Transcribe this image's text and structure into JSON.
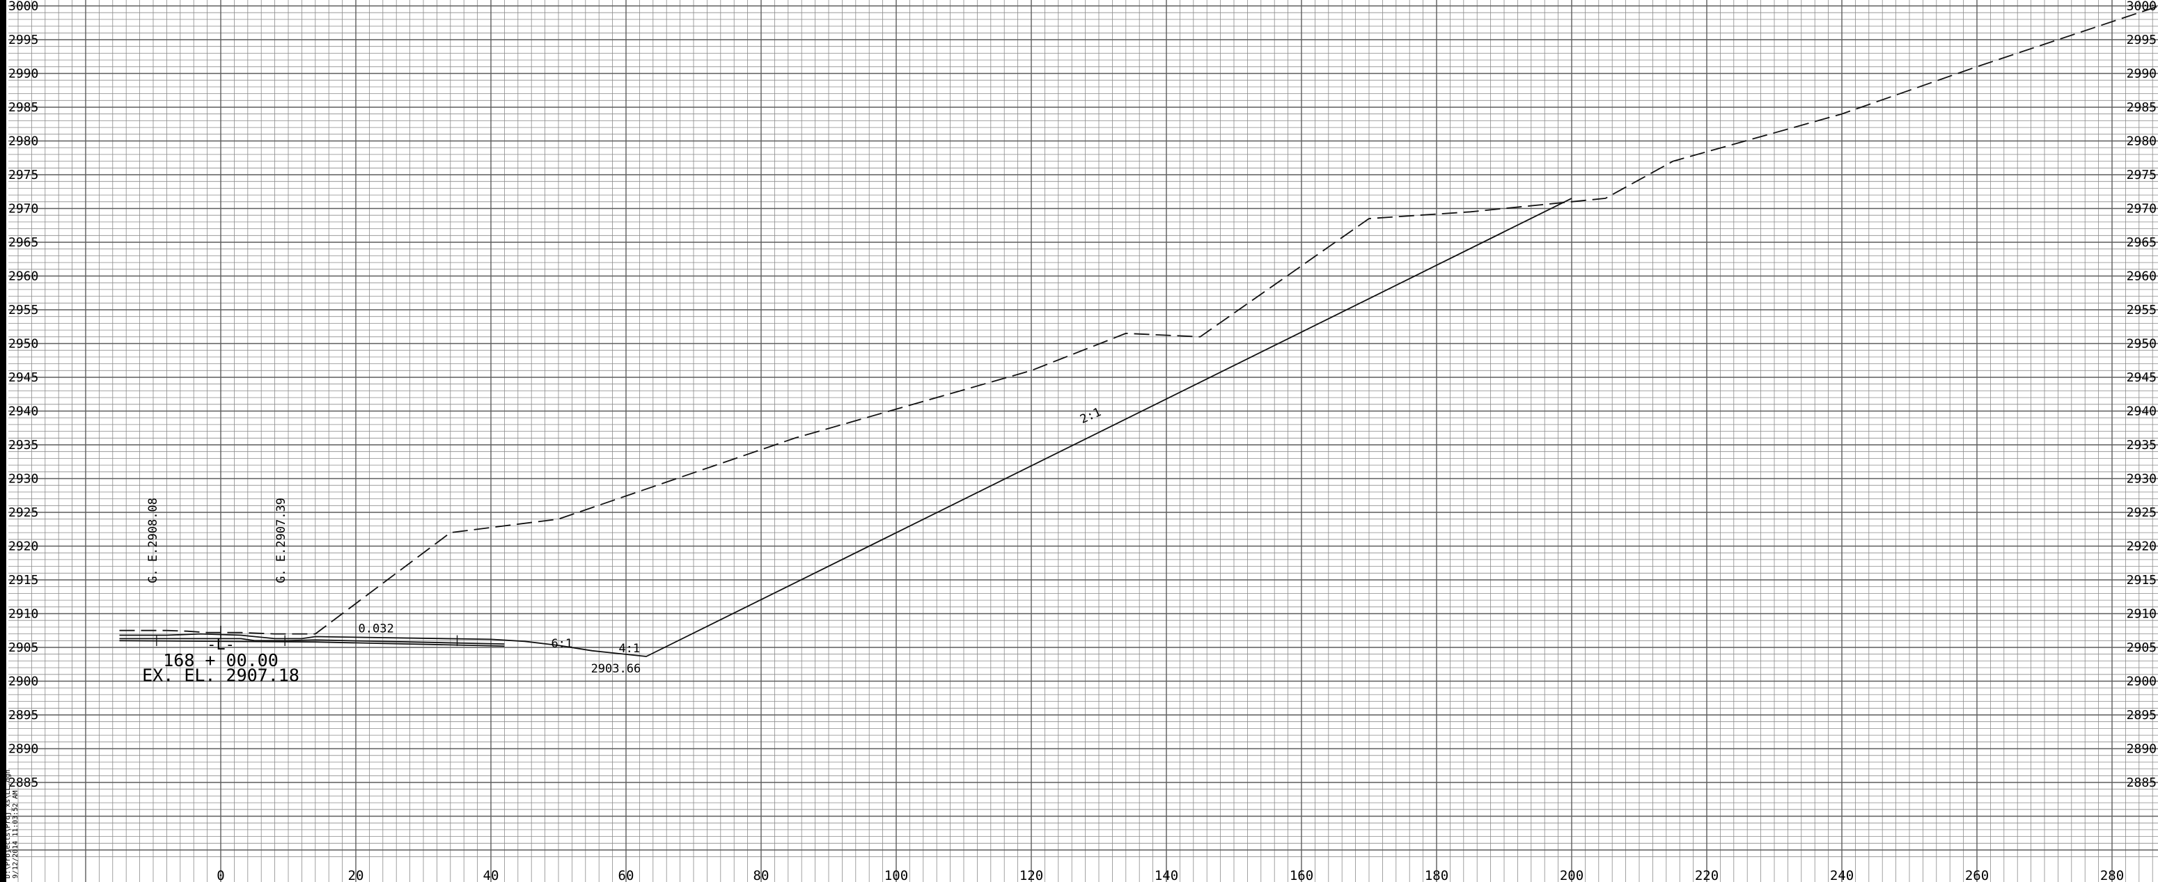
{
  "sheet": {
    "filename_text": "D:\\Projects\\Proj_xs\\LL.dgn",
    "plot_stamp": "9/12/2014 11:03:52 AM"
  },
  "chart_data": {
    "type": "line",
    "title": "",
    "xlabel": "",
    "ylabel": "",
    "xlim": [
      -32,
      288
    ],
    "ylim": [
      2874,
      3001
    ],
    "x_ticks": [
      0,
      20,
      40,
      60,
      80,
      100,
      120,
      140,
      160,
      180,
      200,
      220,
      240,
      260,
      280
    ],
    "x_tick_labels": [
      "0",
      "20",
      "40",
      "60",
      "80",
      "100",
      "120",
      "140",
      "160",
      "180",
      "200",
      "220",
      "240",
      "260",
      "280"
    ],
    "y_ticks": [
      2885,
      2890,
      2895,
      2900,
      2905,
      2910,
      2915,
      2920,
      2925,
      2930,
      2935,
      2940,
      2945,
      2950,
      2955,
      2960,
      2965,
      2970,
      2975,
      2980,
      2985,
      2990,
      2995,
      3000
    ],
    "y_tick_labels_left": [
      "2885",
      "2890",
      "2895",
      "2900",
      "2905",
      "2910",
      "2915",
      "2920",
      "2925",
      "2930",
      "2935",
      "2940",
      "2945",
      "2950",
      "2955",
      "2960",
      "2965",
      "2970",
      "2975",
      "2980",
      "2985",
      "2990",
      "2995",
      "3000"
    ],
    "y_tick_labels_right": [
      "2885",
      "2890",
      "2895",
      "2900",
      "2905",
      "2910",
      "2915",
      "2920",
      "2925",
      "2930",
      "2935",
      "2940",
      "2945",
      "2950",
      "2955",
      "2960",
      "2965",
      "2970",
      "2975",
      "2980",
      "2985",
      "2990",
      "2995",
      "3000"
    ],
    "grid": true,
    "grid_minor_step_x": 2,
    "grid_minor_step_y": 1,
    "grid_color": "#8a8a8a",
    "series": [
      {
        "style": "dashed",
        "color": "#111111",
        "points": [
          [
            -15,
            2907.5
          ],
          [
            -8,
            2907.5
          ],
          [
            -5,
            2907.4
          ],
          [
            -2,
            2907.2
          ],
          [
            3,
            2907.2
          ],
          [
            8,
            2907.0
          ],
          [
            14,
            2907.0
          ],
          [
            34,
            2922.0
          ],
          [
            50,
            2924.0
          ],
          [
            85,
            2936.0
          ],
          [
            120,
            2946.0
          ],
          [
            134,
            2951.5
          ],
          [
            145,
            2951.0
          ],
          [
            170,
            2968.5
          ],
          [
            185,
            2969.5
          ],
          [
            200,
            2971.0
          ],
          [
            205,
            2971.5
          ],
          [
            215,
            2977.0
          ],
          [
            240,
            2984.0
          ],
          [
            260,
            2991.0
          ],
          [
            287,
            3000.0
          ]
        ]
      },
      {
        "style": "solid",
        "color": "#111111",
        "points": [
          [
            -15,
            2906.8
          ],
          [
            -8,
            2906.8
          ],
          [
            -3,
            2907.0
          ],
          [
            3,
            2906.8
          ],
          [
            8,
            2906.3
          ],
          [
            12,
            2906.3
          ],
          [
            14,
            2906.6
          ],
          [
            40,
            2906.2
          ],
          [
            45,
            2905.9
          ],
          [
            50,
            2905.3
          ],
          [
            55,
            2904.5
          ],
          [
            63,
            2903.66
          ],
          [
            200,
            2971.5
          ]
        ]
      },
      {
        "style": "solid",
        "color": "#111111",
        "points": [
          [
            -15,
            2906.3
          ],
          [
            3,
            2906.3
          ],
          [
            5,
            2906.0
          ],
          [
            10,
            2906.0
          ],
          [
            14,
            2906.1
          ],
          [
            42,
            2905.5
          ]
        ]
      },
      {
        "style": "solid",
        "color": "#111111",
        "points": [
          [
            -15,
            2906.0
          ],
          [
            14,
            2905.8
          ],
          [
            42,
            2905.2
          ]
        ]
      }
    ],
    "annotations": [
      {
        "text": "0.032",
        "x": 23,
        "y": 2907.2,
        "rotate": 0,
        "size": "small"
      },
      {
        "text": "6:1",
        "x": 50.5,
        "y": 2905.0,
        "rotate": 0,
        "size": "small"
      },
      {
        "text": "4:1",
        "x": 60.5,
        "y": 2904.3,
        "rotate": 0,
        "size": "small"
      },
      {
        "text": "2:1",
        "x": 129,
        "y": 2938.8,
        "rotate": -24,
        "size": "small"
      },
      {
        "text": "2903.66",
        "x": 58.5,
        "y": 2901.3,
        "rotate": 0,
        "size": "small"
      },
      {
        "text": "G. E.2908.08",
        "x": -9.5,
        "y": 2914.5,
        "rotate": -90,
        "size": "small"
      },
      {
        "text": "G. E.2907.39",
        "x": 9.5,
        "y": 2914.5,
        "rotate": -90,
        "size": "small"
      },
      {
        "text": "-L-",
        "x": 0,
        "y": 2904.7,
        "rotate": 0,
        "size": "medium"
      },
      {
        "text": "168 + 00.00",
        "x": 0,
        "y": 2902.2,
        "rotate": 0,
        "size": "large"
      },
      {
        "text": "EX. EL. 2907.18",
        "x": 0,
        "y": 2900.0,
        "rotate": 0,
        "size": "large"
      }
    ]
  }
}
